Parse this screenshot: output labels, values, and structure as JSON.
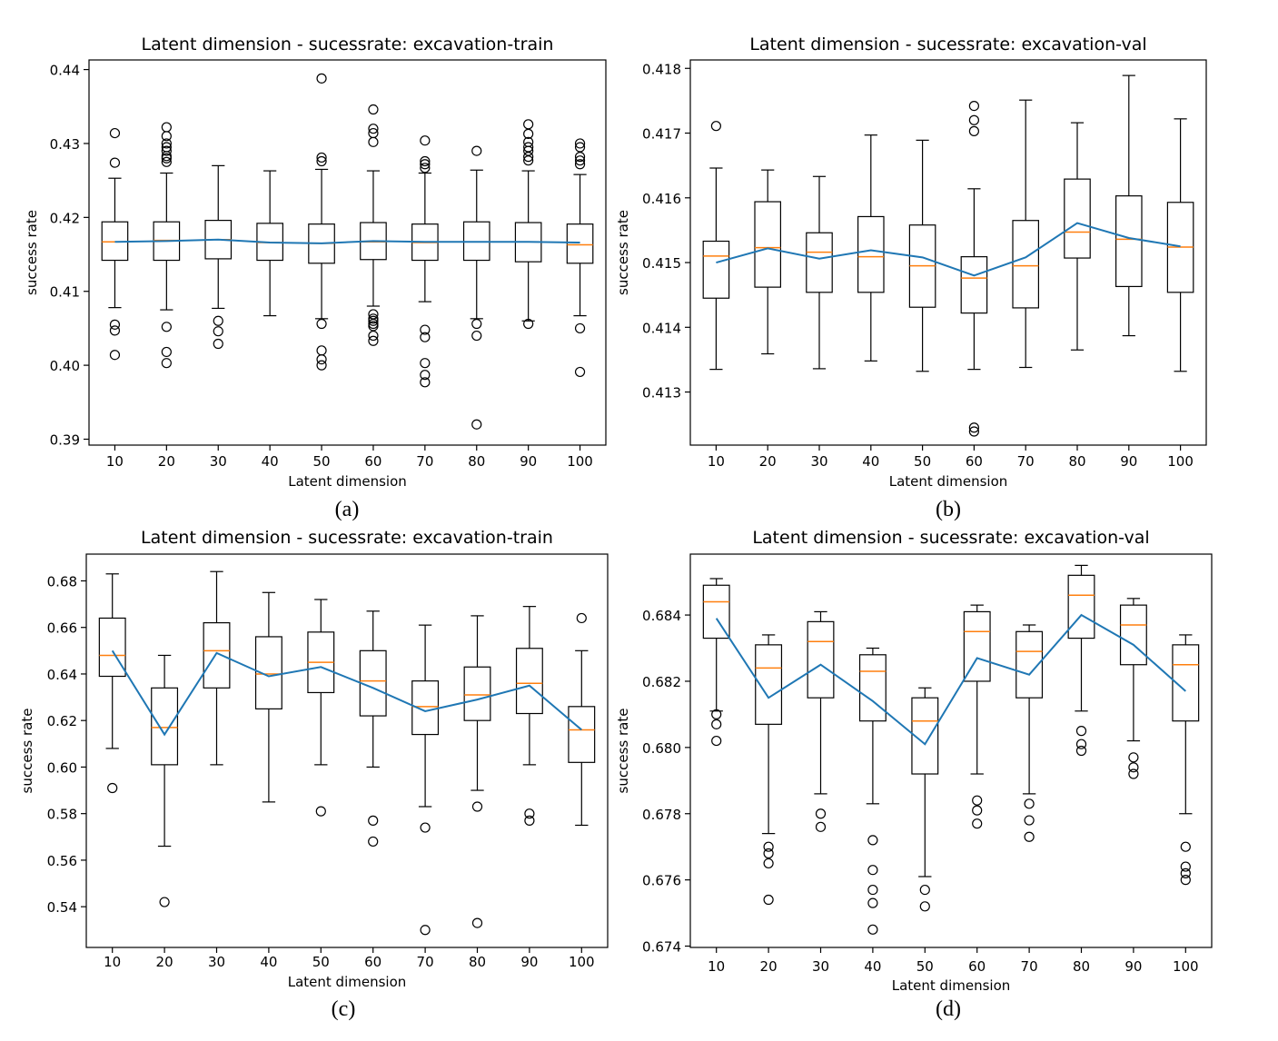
{
  "colors": {
    "box": "#000000",
    "median": "#ff7f0e",
    "mean_line": "#1f77b4",
    "flier": "#000000",
    "background": "#ffffff"
  },
  "chart_data": [
    {
      "panel": "(a)",
      "type": "box",
      "title": "Latent dimension - sucessrate: excavation-train",
      "xlabel": "Latent dimension",
      "ylabel": "success rate",
      "categories": [
        "10",
        "20",
        "30",
        "40",
        "50",
        "60",
        "70",
        "80",
        "90",
        "100"
      ],
      "ylim": [
        0.3892,
        0.4413
      ],
      "yticks": [
        0.39,
        0.4,
        0.41,
        0.42,
        0.43,
        0.44
      ],
      "ytick_labels": [
        "0.39",
        "0.40",
        "0.41",
        "0.42",
        "0.43",
        "0.44"
      ],
      "boxes": [
        {
          "whislo": 0.4078,
          "q1": 0.4142,
          "med": 0.4167,
          "q3": 0.4194,
          "whishi": 0.4253,
          "fliers": [
            0.4314,
            0.4274,
            0.4055,
            0.4047,
            0.4014
          ]
        },
        {
          "whislo": 0.4075,
          "q1": 0.4142,
          "med": 0.4169,
          "q3": 0.4194,
          "whishi": 0.426,
          "fliers": [
            0.4322,
            0.431,
            0.43,
            0.4295,
            0.429,
            0.4283,
            0.428,
            0.4275,
            0.4052,
            0.4018,
            0.4003
          ]
        },
        {
          "whislo": 0.4077,
          "q1": 0.4144,
          "med": 0.417,
          "q3": 0.4196,
          "whishi": 0.427,
          "fliers": [
            0.406,
            0.4046,
            0.4029
          ]
        },
        {
          "whislo": 0.4067,
          "q1": 0.4142,
          "med": 0.4166,
          "q3": 0.4192,
          "whishi": 0.4263,
          "fliers": []
        },
        {
          "whislo": 0.4063,
          "q1": 0.4138,
          "med": 0.4165,
          "q3": 0.4191,
          "whishi": 0.4265,
          "fliers": [
            0.4388,
            0.4281,
            0.4276,
            0.4056,
            0.402,
            0.4008,
            0.4
          ]
        },
        {
          "whislo": 0.408,
          "q1": 0.4143,
          "med": 0.4167,
          "q3": 0.4193,
          "whishi": 0.4263,
          "fliers": [
            0.4346,
            0.432,
            0.4314,
            0.4302,
            0.4069,
            0.4063,
            0.406,
            0.4056,
            0.4053,
            0.404,
            0.4033
          ]
        },
        {
          "whislo": 0.4086,
          "q1": 0.4142,
          "med": 0.4166,
          "q3": 0.4191,
          "whishi": 0.426,
          "fliers": [
            0.4304,
            0.4276,
            0.4272,
            0.4267,
            0.4048,
            0.4038,
            0.4003,
            0.3987,
            0.3977
          ]
        },
        {
          "whislo": 0.4063,
          "q1": 0.4142,
          "med": 0.4167,
          "q3": 0.4194,
          "whishi": 0.4264,
          "fliers": [
            0.429,
            0.4056,
            0.404,
            0.392
          ]
        },
        {
          "whislo": 0.406,
          "q1": 0.414,
          "med": 0.4167,
          "q3": 0.4193,
          "whishi": 0.4263,
          "fliers": [
            0.4326,
            0.4313,
            0.4302,
            0.4295,
            0.429,
            0.4282,
            0.4277,
            0.4056
          ]
        },
        {
          "whislo": 0.4067,
          "q1": 0.4138,
          "med": 0.4163,
          "q3": 0.4191,
          "whishi": 0.4258,
          "fliers": [
            0.43,
            0.4295,
            0.4282,
            0.4277,
            0.4272,
            0.405,
            0.3991
          ]
        }
      ],
      "mean": [
        0.4167,
        0.4168,
        0.417,
        0.4166,
        0.4165,
        0.4168,
        0.4167,
        0.4167,
        0.4167,
        0.4166
      ]
    },
    {
      "panel": "(b)",
      "type": "box",
      "title": "Latent dimension - sucessrate: excavation-val",
      "xlabel": "Latent dimension",
      "ylabel": "success rate",
      "categories": [
        "10",
        "20",
        "30",
        "40",
        "50",
        "60",
        "70",
        "80",
        "90",
        "100"
      ],
      "ylim": [
        0.41218,
        0.41813
      ],
      "yticks": [
        0.413,
        0.414,
        0.415,
        0.416,
        0.417,
        0.418
      ],
      "ytick_labels": [
        "0.413",
        "0.414",
        "0.415",
        "0.416",
        "0.417",
        "0.418"
      ],
      "boxes": [
        {
          "whislo": 0.41335,
          "q1": 0.41445,
          "med": 0.4151,
          "q3": 0.41533,
          "whishi": 0.41646,
          "fliers": [
            0.41711
          ]
        },
        {
          "whislo": 0.41359,
          "q1": 0.41462,
          "med": 0.41523,
          "q3": 0.41594,
          "whishi": 0.41643,
          "fliers": []
        },
        {
          "whislo": 0.41336,
          "q1": 0.41454,
          "med": 0.41516,
          "q3": 0.41546,
          "whishi": 0.41633,
          "fliers": []
        },
        {
          "whislo": 0.41348,
          "q1": 0.41454,
          "med": 0.41509,
          "q3": 0.41571,
          "whishi": 0.41697,
          "fliers": []
        },
        {
          "whislo": 0.41332,
          "q1": 0.41431,
          "med": 0.41495,
          "q3": 0.41558,
          "whishi": 0.41689,
          "fliers": []
        },
        {
          "whislo": 0.41335,
          "q1": 0.41422,
          "med": 0.41476,
          "q3": 0.41509,
          "whishi": 0.41614,
          "fliers": [
            0.41742,
            0.4172,
            0.41703,
            0.41245,
            0.41239
          ]
        },
        {
          "whislo": 0.41338,
          "q1": 0.4143,
          "med": 0.41495,
          "q3": 0.41565,
          "whishi": 0.41751,
          "fliers": []
        },
        {
          "whislo": 0.41365,
          "q1": 0.41507,
          "med": 0.41547,
          "q3": 0.41629,
          "whishi": 0.41716,
          "fliers": []
        },
        {
          "whislo": 0.41387,
          "q1": 0.41463,
          "med": 0.41536,
          "q3": 0.41603,
          "whishi": 0.41789,
          "fliers": []
        },
        {
          "whislo": 0.41332,
          "q1": 0.41454,
          "med": 0.41524,
          "q3": 0.41593,
          "whishi": 0.41722,
          "fliers": []
        }
      ],
      "mean": [
        0.415,
        0.41522,
        0.41506,
        0.41519,
        0.41508,
        0.4148,
        0.41508,
        0.41561,
        0.41538,
        0.41525
      ]
    },
    {
      "panel": "(c)",
      "type": "box",
      "title": "Latent dimension - sucessrate: excavation-train",
      "xlabel": "Latent dimension",
      "ylabel": "success rate",
      "categories": [
        "10",
        "20",
        "30",
        "40",
        "50",
        "60",
        "70",
        "80",
        "90",
        "100"
      ],
      "ylim": [
        0.5225,
        0.6915
      ],
      "yticks": [
        0.54,
        0.56,
        0.58,
        0.6,
        0.62,
        0.64,
        0.66,
        0.68
      ],
      "ytick_labels": [
        "0.54",
        "0.56",
        "0.58",
        "0.60",
        "0.62",
        "0.64",
        "0.66",
        "0.68"
      ],
      "boxes": [
        {
          "whislo": 0.608,
          "q1": 0.639,
          "med": 0.648,
          "q3": 0.664,
          "whishi": 0.683,
          "fliers": [
            0.591
          ]
        },
        {
          "whislo": 0.566,
          "q1": 0.601,
          "med": 0.617,
          "q3": 0.634,
          "whishi": 0.648,
          "fliers": [
            0.542
          ]
        },
        {
          "whislo": 0.601,
          "q1": 0.634,
          "med": 0.65,
          "q3": 0.662,
          "whishi": 0.684,
          "fliers": []
        },
        {
          "whislo": 0.585,
          "q1": 0.625,
          "med": 0.64,
          "q3": 0.656,
          "whishi": 0.675,
          "fliers": []
        },
        {
          "whislo": 0.601,
          "q1": 0.632,
          "med": 0.645,
          "q3": 0.658,
          "whishi": 0.672,
          "fliers": [
            0.581
          ]
        },
        {
          "whislo": 0.6,
          "q1": 0.622,
          "med": 0.637,
          "q3": 0.65,
          "whishi": 0.667,
          "fliers": [
            0.577,
            0.568
          ]
        },
        {
          "whislo": 0.583,
          "q1": 0.614,
          "med": 0.626,
          "q3": 0.637,
          "whishi": 0.661,
          "fliers": [
            0.574,
            0.53
          ]
        },
        {
          "whislo": 0.59,
          "q1": 0.62,
          "med": 0.631,
          "q3": 0.643,
          "whishi": 0.665,
          "fliers": [
            0.583,
            0.533
          ]
        },
        {
          "whislo": 0.601,
          "q1": 0.623,
          "med": 0.636,
          "q3": 0.651,
          "whishi": 0.669,
          "fliers": [
            0.58,
            0.577
          ]
        },
        {
          "whislo": 0.575,
          "q1": 0.602,
          "med": 0.616,
          "q3": 0.626,
          "whishi": 0.65,
          "fliers": [
            0.664
          ]
        }
      ],
      "mean": [
        0.65,
        0.614,
        0.649,
        0.639,
        0.643,
        0.634,
        0.624,
        0.629,
        0.635,
        0.616
      ]
    },
    {
      "panel": "(d)",
      "type": "box",
      "title": "Latent dimension - sucessrate: excavation-val",
      "xlabel": "Latent dimension",
      "ylabel": "success rate",
      "categories": [
        "10",
        "20",
        "30",
        "40",
        "50",
        "60",
        "70",
        "80",
        "90",
        "100"
      ],
      "ylim": [
        0.67396,
        0.68584
      ],
      "yticks": [
        0.674,
        0.676,
        0.678,
        0.68,
        0.682,
        0.684
      ],
      "ytick_labels": [
        "0.674",
        "0.676",
        "0.678",
        "0.680",
        "0.682",
        "0.684"
      ],
      "boxes": [
        {
          "whislo": 0.6811,
          "q1": 0.6833,
          "med": 0.6844,
          "q3": 0.6849,
          "whishi": 0.6851,
          "fliers": [
            0.681,
            0.6807,
            0.6802
          ]
        },
        {
          "whislo": 0.6774,
          "q1": 0.6807,
          "med": 0.6824,
          "q3": 0.6831,
          "whishi": 0.6834,
          "fliers": [
            0.677,
            0.6768,
            0.6765,
            0.6754
          ]
        },
        {
          "whislo": 0.6786,
          "q1": 0.6815,
          "med": 0.6832,
          "q3": 0.6838,
          "whishi": 0.6841,
          "fliers": [
            0.678,
            0.6776
          ]
        },
        {
          "whislo": 0.6783,
          "q1": 0.6808,
          "med": 0.6823,
          "q3": 0.6828,
          "whishi": 0.683,
          "fliers": [
            0.6772,
            0.6763,
            0.6757,
            0.6753,
            0.6745
          ]
        },
        {
          "whislo": 0.6761,
          "q1": 0.6792,
          "med": 0.6808,
          "q3": 0.6815,
          "whishi": 0.6818,
          "fliers": [
            0.6757,
            0.6752
          ]
        },
        {
          "whislo": 0.6792,
          "q1": 0.682,
          "med": 0.6835,
          "q3": 0.6841,
          "whishi": 0.6843,
          "fliers": [
            0.6784,
            0.6781,
            0.6777
          ]
        },
        {
          "whislo": 0.6786,
          "q1": 0.6815,
          "med": 0.6829,
          "q3": 0.6835,
          "whishi": 0.6837,
          "fliers": [
            0.6783,
            0.6778,
            0.6773
          ]
        },
        {
          "whislo": 0.6811,
          "q1": 0.6833,
          "med": 0.6846,
          "q3": 0.6852,
          "whishi": 0.6855,
          "fliers": [
            0.6805,
            0.6801,
            0.6799
          ]
        },
        {
          "whislo": 0.6802,
          "q1": 0.6825,
          "med": 0.6837,
          "q3": 0.6843,
          "whishi": 0.6845,
          "fliers": [
            0.6797,
            0.6794,
            0.6792
          ]
        },
        {
          "whislo": 0.678,
          "q1": 0.6808,
          "med": 0.6825,
          "q3": 0.6831,
          "whishi": 0.6834,
          "fliers": [
            0.677,
            0.6764,
            0.6762,
            0.676
          ]
        }
      ],
      "mean": [
        0.6839,
        0.6815,
        0.6825,
        0.6814,
        0.6801,
        0.6827,
        0.6822,
        0.684,
        0.6831,
        0.6817
      ]
    }
  ]
}
